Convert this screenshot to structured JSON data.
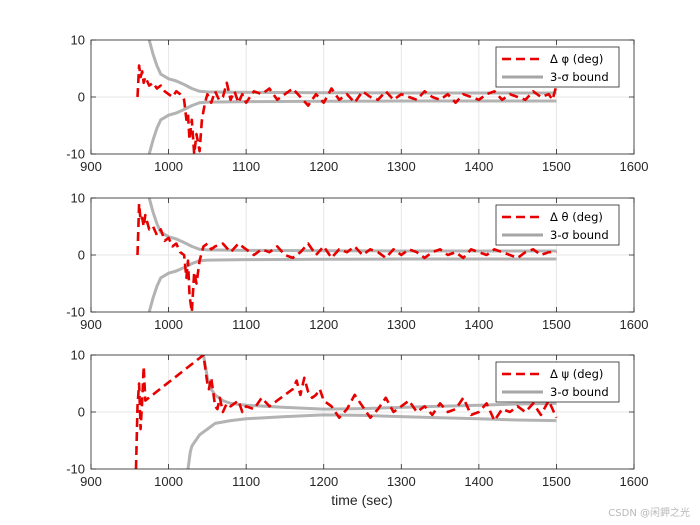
{
  "figure": {
    "xlabel": "time (sec)",
    "watermark": "CSDN @闲鉀之光"
  },
  "chart_data": [
    {
      "type": "line",
      "xlim": [
        900,
        1600
      ],
      "ylim": [
        -10,
        10
      ],
      "xticks": [
        900,
        1000,
        1100,
        1200,
        1300,
        1400,
        1500,
        1600
      ],
      "yticks": [
        -10,
        0,
        10
      ],
      "grid": true,
      "legend_position": "top-right",
      "legend": [
        {
          "label": "Δ φ (deg)",
          "style": "dashed",
          "color": "#e60000"
        },
        {
          "label": "3-σ bound",
          "style": "solid",
          "color": "#a6a6a6"
        }
      ],
      "series": [
        {
          "name": "Δ φ (deg)",
          "style": "dashed",
          "color": "#e60000",
          "x": [
            960,
            962,
            964,
            966,
            968,
            970,
            975,
            980,
            985,
            990,
            995,
            1000,
            1005,
            1010,
            1015,
            1020,
            1023,
            1025,
            1027,
            1030,
            1033,
            1036,
            1040,
            1043,
            1047,
            1050,
            1055,
            1060,
            1065,
            1070,
            1075,
            1080,
            1085,
            1090,
            1095,
            1100,
            1110,
            1120,
            1130,
            1140,
            1150,
            1160,
            1170,
            1180,
            1190,
            1200,
            1210,
            1220,
            1230,
            1240,
            1250,
            1260,
            1270,
            1280,
            1290,
            1300,
            1310,
            1320,
            1330,
            1340,
            1350,
            1360,
            1370,
            1380,
            1390,
            1400,
            1410,
            1420,
            1430,
            1440,
            1450,
            1460,
            1470,
            1480,
            1490,
            1495,
            1500
          ],
          "y": [
            0,
            5.5,
            3.5,
            4.5,
            2.5,
            3.5,
            2,
            2.5,
            1.5,
            2,
            1,
            0.5,
            0,
            1,
            0.5,
            -0.5,
            -4,
            -3,
            -7.5,
            -4,
            -10,
            -6.5,
            -9.5,
            -4,
            -1,
            0.5,
            -1,
            1,
            -0.5,
            0,
            2.5,
            -0.5,
            1,
            -1,
            0.5,
            -1,
            1,
            0.5,
            1.5,
            -0.5,
            0.5,
            1.5,
            0,
            -1.5,
            0.5,
            -1,
            1.5,
            -0.5,
            0.5,
            -1,
            1,
            0,
            -0.5,
            1,
            -0.5,
            0.5,
            0,
            -0.5,
            1,
            0,
            -0.5,
            0.5,
            -1,
            0.5,
            0,
            -0.5,
            0.5,
            1,
            -0.5,
            0.5,
            0,
            -0.5,
            1,
            0,
            0.5,
            -0.5,
            2
          ]
        },
        {
          "name": "3-σ bound (upper)",
          "style": "solid",
          "color": "#a6a6a6",
          "x": [
            975,
            980,
            985,
            990,
            1000,
            1010,
            1020,
            1030,
            1040,
            1050,
            1100,
            1200,
            1300,
            1400,
            1500
          ],
          "y": [
            10,
            7.5,
            5.5,
            4,
            3.2,
            2.8,
            2.2,
            1.5,
            1.0,
            0.9,
            0.8,
            0.75,
            0.7,
            0.7,
            0.7
          ]
        },
        {
          "name": "3-σ bound (lower)",
          "style": "solid",
          "color": "#a6a6a6",
          "x": [
            975,
            980,
            985,
            990,
            1000,
            1010,
            1020,
            1030,
            1040,
            1050,
            1100,
            1200,
            1300,
            1400,
            1500
          ],
          "y": [
            -10,
            -7.5,
            -5.5,
            -4,
            -3.2,
            -2.8,
            -2.2,
            -1.5,
            -1.0,
            -0.9,
            -0.8,
            -0.75,
            -0.7,
            -0.7,
            -0.7
          ]
        }
      ]
    },
    {
      "type": "line",
      "xlim": [
        900,
        1600
      ],
      "ylim": [
        -10,
        10
      ],
      "xticks": [
        900,
        1000,
        1100,
        1200,
        1300,
        1400,
        1500,
        1600
      ],
      "yticks": [
        -10,
        0,
        10
      ],
      "grid": true,
      "legend_position": "top-right",
      "legend": [
        {
          "label": "Δ θ (deg)",
          "style": "dashed",
          "color": "#e60000"
        },
        {
          "label": "3-σ bound",
          "style": "solid",
          "color": "#a6a6a6"
        }
      ],
      "series": [
        {
          "name": "Δ θ (deg)",
          "style": "dashed",
          "color": "#e60000",
          "x": [
            960,
            962,
            964,
            966,
            968,
            970,
            975,
            980,
            985,
            990,
            995,
            1000,
            1005,
            1010,
            1015,
            1020,
            1023,
            1025,
            1027,
            1030,
            1033,
            1036,
            1040,
            1045,
            1050,
            1055,
            1060,
            1070,
            1080,
            1090,
            1100,
            1110,
            1120,
            1130,
            1140,
            1150,
            1160,
            1170,
            1180,
            1190,
            1200,
            1210,
            1220,
            1230,
            1240,
            1250,
            1260,
            1270,
            1280,
            1290,
            1300,
            1310,
            1320,
            1330,
            1340,
            1350,
            1360,
            1370,
            1380,
            1390,
            1400,
            1410,
            1420,
            1430,
            1440,
            1450,
            1460,
            1470,
            1480,
            1490,
            1500
          ],
          "y": [
            0,
            9,
            6,
            6.5,
            5,
            7,
            4.5,
            5,
            3.5,
            4.5,
            2.5,
            3,
            1.5,
            2,
            0.5,
            0,
            -4,
            -1,
            -7,
            -10,
            -3,
            -5,
            -1,
            1.5,
            2,
            1,
            1.5,
            2,
            0.5,
            2,
            1,
            0,
            1,
            0.5,
            1.5,
            0,
            -0.5,
            0.5,
            2,
            0,
            1.5,
            -0.5,
            1,
            0.5,
            1.5,
            0,
            1,
            0.5,
            -0.5,
            1,
            0,
            1,
            0.5,
            -0.5,
            0.5,
            1,
            0,
            0.5,
            -0.5,
            1,
            0.5,
            0,
            1,
            0.5,
            0,
            -0.5,
            0.5,
            1,
            0,
            0.5,
            0.5
          ]
        },
        {
          "name": "3-σ bound (upper)",
          "style": "solid",
          "color": "#a6a6a6",
          "x": [
            975,
            980,
            985,
            990,
            1000,
            1010,
            1020,
            1030,
            1040,
            1050,
            1100,
            1200,
            1300,
            1400,
            1500
          ],
          "y": [
            10,
            7.5,
            5.5,
            4,
            3.2,
            2.8,
            2.2,
            1.5,
            1.0,
            0.9,
            0.8,
            0.75,
            0.7,
            0.7,
            0.7
          ]
        },
        {
          "name": "3-σ bound (lower)",
          "style": "solid",
          "color": "#a6a6a6",
          "x": [
            975,
            980,
            985,
            990,
            1000,
            1010,
            1020,
            1030,
            1040,
            1050,
            1100,
            1200,
            1300,
            1400,
            1500
          ],
          "y": [
            -10,
            -7.5,
            -5.5,
            -4,
            -3.2,
            -2.8,
            -2.2,
            -1.5,
            -1.0,
            -0.9,
            -0.8,
            -0.75,
            -0.7,
            -0.7,
            -0.7
          ]
        }
      ]
    },
    {
      "type": "line",
      "xlim": [
        900,
        1600
      ],
      "ylim": [
        -10,
        10
      ],
      "xticks": [
        900,
        1000,
        1100,
        1200,
        1300,
        1400,
        1500,
        1600
      ],
      "yticks": [
        -10,
        0,
        10
      ],
      "grid": true,
      "legend_position": "top-right",
      "legend": [
        {
          "label": "Δ ψ (deg)",
          "style": "dashed",
          "color": "#e60000"
        },
        {
          "label": "3-σ bound",
          "style": "solid",
          "color": "#a6a6a6"
        }
      ],
      "series": [
        {
          "name": "Δ ψ (deg)",
          "style": "dashed",
          "color": "#e60000",
          "x": [
            958,
            960,
            962,
            964,
            966,
            968,
            970,
            1045,
            1048,
            1050,
            1052,
            1055,
            1058,
            1060,
            1063,
            1066,
            1070,
            1075,
            1080,
            1085,
            1090,
            1095,
            1100,
            1110,
            1120,
            1130,
            1140,
            1150,
            1160,
            1165,
            1170,
            1175,
            1180,
            1185,
            1190,
            1195,
            1200,
            1210,
            1220,
            1230,
            1240,
            1250,
            1260,
            1270,
            1280,
            1290,
            1300,
            1310,
            1320,
            1330,
            1340,
            1350,
            1360,
            1370,
            1380,
            1390,
            1400,
            1410,
            1420,
            1430,
            1440,
            1450,
            1460,
            1470,
            1480,
            1490,
            1500
          ],
          "y": [
            -10,
            1,
            5,
            -3,
            2,
            8,
            2,
            10,
            7,
            5,
            4,
            6,
            3,
            1,
            0.5,
            2.5,
            0,
            1.5,
            1,
            1.5,
            2,
            0,
            1,
            0.5,
            2.5,
            1,
            2,
            3,
            4,
            5.5,
            3,
            6,
            3.5,
            2.5,
            3,
            4,
            2,
            1,
            -1,
            0.5,
            3,
            1,
            -1,
            0.5,
            2.5,
            0,
            1,
            2,
            0,
            1,
            -0.5,
            1.5,
            0,
            0.5,
            2.5,
            -0.5,
            0,
            1.5,
            -1.5,
            0.5,
            0,
            1,
            0,
            1.5,
            -0.5,
            2,
            -1
          ]
        },
        {
          "name": "3-σ bound (upper)",
          "style": "solid",
          "color": "#a6a6a6",
          "x": [
            1045,
            1050,
            1055,
            1060,
            1070,
            1080,
            1100,
            1150,
            1200,
            1250,
            1300,
            1350,
            1400,
            1450,
            1500
          ],
          "y": [
            10,
            6,
            4,
            3,
            2,
            1.5,
            1.2,
            0.8,
            0.5,
            0.6,
            0.8,
            1.0,
            1.2,
            1.4,
            1.5
          ]
        },
        {
          "name": "3-σ bound (lower)",
          "style": "solid",
          "color": "#a6a6a6",
          "x": [
            1025,
            1028,
            1030,
            1035,
            1040,
            1045,
            1050,
            1060,
            1080,
            1100,
            1150,
            1200,
            1250,
            1300,
            1350,
            1400,
            1450,
            1500
          ],
          "y": [
            -10,
            -7,
            -6,
            -5,
            -4,
            -3.5,
            -3,
            -2,
            -1.5,
            -1.2,
            -0.8,
            -0.5,
            -0.6,
            -0.8,
            -1.0,
            -1.2,
            -1.4,
            -1.5
          ]
        }
      ]
    }
  ]
}
